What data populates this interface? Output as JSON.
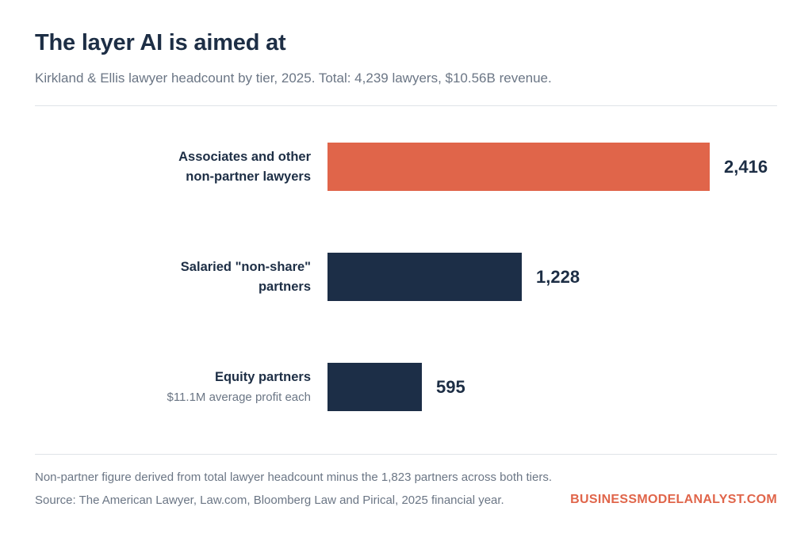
{
  "header": {
    "title": "The layer AI is aimed at",
    "subtitle": "Kirkland & Ellis lawyer headcount by tier, 2025. Total: 4,239 lawyers, $10.56B revenue."
  },
  "chart_data": {
    "type": "bar",
    "orientation": "horizontal",
    "categories": [
      {
        "line1": "Associates and other",
        "line2": "non-partner lawyers",
        "sub": ""
      },
      {
        "line1": "Salaried \"non-share\"",
        "line2": "partners",
        "sub": ""
      },
      {
        "line1": "Equity partners",
        "line2": "",
        "sub": "$11.1M average profit each"
      }
    ],
    "values": [
      2416,
      1228,
      595
    ],
    "value_labels": [
      "2,416",
      "1,228",
      "595"
    ],
    "colors": [
      "#e0654a",
      "#1c2e47",
      "#1c2e47"
    ],
    "xlim": [
      0,
      2416
    ],
    "grid": false,
    "legend": "none"
  },
  "footer": {
    "note": "Non-partner figure derived from total lawyer headcount minus the 1,823 partners across both tiers.",
    "source": "Source: The American Lawyer, Law.com, Bloomberg Law and Pirical, 2025 financial year.",
    "brand": "BUSINESSMODELANALYST.COM"
  }
}
